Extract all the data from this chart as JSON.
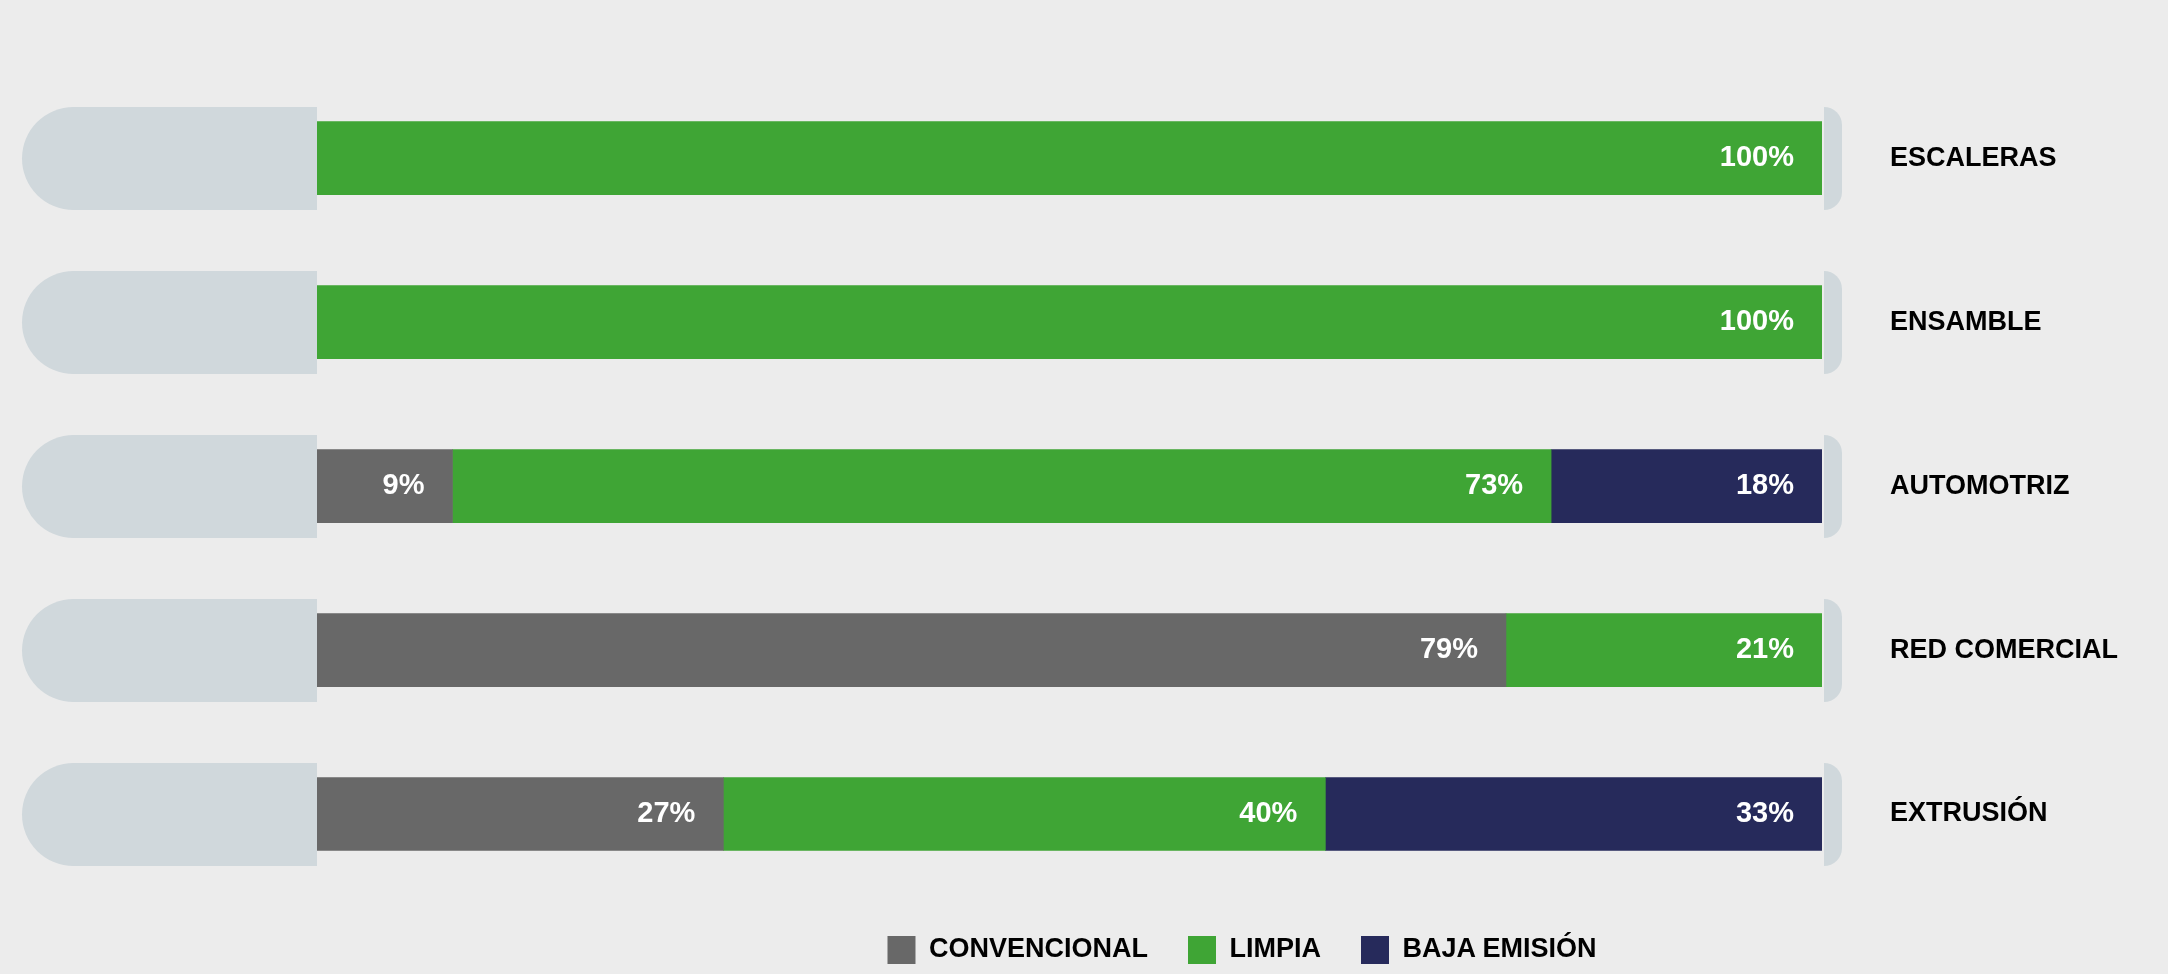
{
  "chart_data": {
    "type": "bar",
    "orientation": "horizontal",
    "stacked": true,
    "categories": [
      "ESCALERAS",
      "ENSAMBLE",
      "AUTOMOTRIZ",
      "RED COMERCIAL",
      "EXTRUSIÓN"
    ],
    "xlim": [
      0,
      100
    ],
    "tick_labels": "y",
    "grid": false,
    "legend": "bottom",
    "series": [
      {
        "name": "CONVENCIONAL",
        "color": "#686868",
        "values": [
          null,
          null,
          9,
          79,
          27
        ],
        "value_labels": [
          null,
          null,
          "9%",
          "79%",
          "27%"
        ]
      },
      {
        "name": "LIMPIA",
        "color": "#3fa535",
        "values": [
          100,
          100,
          73,
          21,
          40
        ],
        "value_labels": [
          "100%",
          "100%",
          "73%",
          "21%",
          "40%"
        ]
      },
      {
        "name": "BAJA EMISIÓN",
        "color": "#262a5b",
        "values": [
          null,
          null,
          18,
          null,
          33
        ],
        "value_labels": [
          null,
          null,
          "18%",
          null,
          "33%"
        ]
      }
    ]
  }
}
